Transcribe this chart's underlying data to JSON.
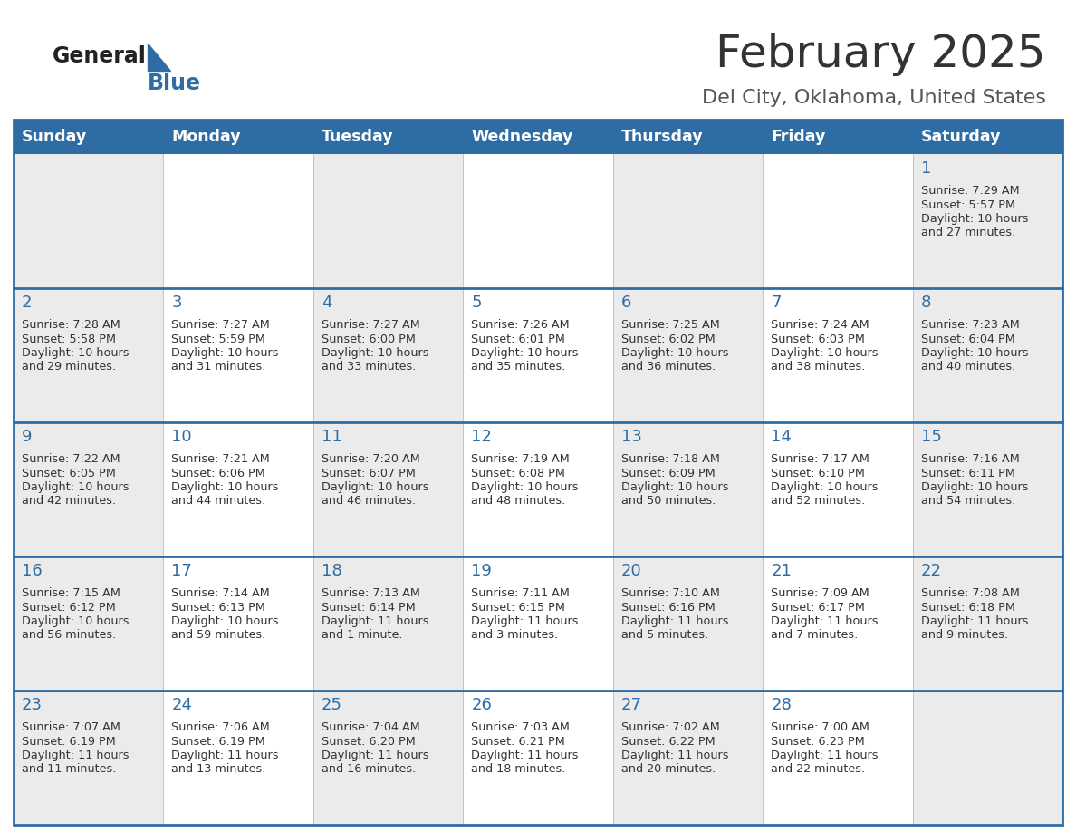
{
  "title": "February 2025",
  "subtitle": "Del City, Oklahoma, United States",
  "header_bg": "#2E6DA4",
  "header_text_color": "#FFFFFF",
  "cell_bg_light": "#EBEBEB",
  "cell_bg_white": "#FFFFFF",
  "border_color": "#2E6DA4",
  "day_names": [
    "Sunday",
    "Monday",
    "Tuesday",
    "Wednesday",
    "Thursday",
    "Friday",
    "Saturday"
  ],
  "title_color": "#333333",
  "subtitle_color": "#555555",
  "day_num_color": "#2E6DA4",
  "cell_text_color": "#333333",
  "logo_general_color": "#222222",
  "logo_blue_color": "#2E6DA4",
  "weeks": [
    [
      {
        "day": null,
        "sunrise": null,
        "sunset": null,
        "daylight": null
      },
      {
        "day": null,
        "sunrise": null,
        "sunset": null,
        "daylight": null
      },
      {
        "day": null,
        "sunrise": null,
        "sunset": null,
        "daylight": null
      },
      {
        "day": null,
        "sunrise": null,
        "sunset": null,
        "daylight": null
      },
      {
        "day": null,
        "sunrise": null,
        "sunset": null,
        "daylight": null
      },
      {
        "day": null,
        "sunrise": null,
        "sunset": null,
        "daylight": null
      },
      {
        "day": 1,
        "sunrise": "7:29 AM",
        "sunset": "5:57 PM",
        "daylight": "10 hours",
        "daylight2": "and 27 minutes."
      }
    ],
    [
      {
        "day": 2,
        "sunrise": "7:28 AM",
        "sunset": "5:58 PM",
        "daylight": "10 hours",
        "daylight2": "and 29 minutes."
      },
      {
        "day": 3,
        "sunrise": "7:27 AM",
        "sunset": "5:59 PM",
        "daylight": "10 hours",
        "daylight2": "and 31 minutes."
      },
      {
        "day": 4,
        "sunrise": "7:27 AM",
        "sunset": "6:00 PM",
        "daylight": "10 hours",
        "daylight2": "and 33 minutes."
      },
      {
        "day": 5,
        "sunrise": "7:26 AM",
        "sunset": "6:01 PM",
        "daylight": "10 hours",
        "daylight2": "and 35 minutes."
      },
      {
        "day": 6,
        "sunrise": "7:25 AM",
        "sunset": "6:02 PM",
        "daylight": "10 hours",
        "daylight2": "and 36 minutes."
      },
      {
        "day": 7,
        "sunrise": "7:24 AM",
        "sunset": "6:03 PM",
        "daylight": "10 hours",
        "daylight2": "and 38 minutes."
      },
      {
        "day": 8,
        "sunrise": "7:23 AM",
        "sunset": "6:04 PM",
        "daylight": "10 hours",
        "daylight2": "and 40 minutes."
      }
    ],
    [
      {
        "day": 9,
        "sunrise": "7:22 AM",
        "sunset": "6:05 PM",
        "daylight": "10 hours",
        "daylight2": "and 42 minutes."
      },
      {
        "day": 10,
        "sunrise": "7:21 AM",
        "sunset": "6:06 PM",
        "daylight": "10 hours",
        "daylight2": "and 44 minutes."
      },
      {
        "day": 11,
        "sunrise": "7:20 AM",
        "sunset": "6:07 PM",
        "daylight": "10 hours",
        "daylight2": "and 46 minutes."
      },
      {
        "day": 12,
        "sunrise": "7:19 AM",
        "sunset": "6:08 PM",
        "daylight": "10 hours",
        "daylight2": "and 48 minutes."
      },
      {
        "day": 13,
        "sunrise": "7:18 AM",
        "sunset": "6:09 PM",
        "daylight": "10 hours",
        "daylight2": "and 50 minutes."
      },
      {
        "day": 14,
        "sunrise": "7:17 AM",
        "sunset": "6:10 PM",
        "daylight": "10 hours",
        "daylight2": "and 52 minutes."
      },
      {
        "day": 15,
        "sunrise": "7:16 AM",
        "sunset": "6:11 PM",
        "daylight": "10 hours",
        "daylight2": "and 54 minutes."
      }
    ],
    [
      {
        "day": 16,
        "sunrise": "7:15 AM",
        "sunset": "6:12 PM",
        "daylight": "10 hours",
        "daylight2": "and 56 minutes."
      },
      {
        "day": 17,
        "sunrise": "7:14 AM",
        "sunset": "6:13 PM",
        "daylight": "10 hours",
        "daylight2": "and 59 minutes."
      },
      {
        "day": 18,
        "sunrise": "7:13 AM",
        "sunset": "6:14 PM",
        "daylight": "11 hours",
        "daylight2": "and 1 minute."
      },
      {
        "day": 19,
        "sunrise": "7:11 AM",
        "sunset": "6:15 PM",
        "daylight": "11 hours",
        "daylight2": "and 3 minutes."
      },
      {
        "day": 20,
        "sunrise": "7:10 AM",
        "sunset": "6:16 PM",
        "daylight": "11 hours",
        "daylight2": "and 5 minutes."
      },
      {
        "day": 21,
        "sunrise": "7:09 AM",
        "sunset": "6:17 PM",
        "daylight": "11 hours",
        "daylight2": "and 7 minutes."
      },
      {
        "day": 22,
        "sunrise": "7:08 AM",
        "sunset": "6:18 PM",
        "daylight": "11 hours",
        "daylight2": "and 9 minutes."
      }
    ],
    [
      {
        "day": 23,
        "sunrise": "7:07 AM",
        "sunset": "6:19 PM",
        "daylight": "11 hours",
        "daylight2": "and 11 minutes."
      },
      {
        "day": 24,
        "sunrise": "7:06 AM",
        "sunset": "6:19 PM",
        "daylight": "11 hours",
        "daylight2": "and 13 minutes."
      },
      {
        "day": 25,
        "sunrise": "7:04 AM",
        "sunset": "6:20 PM",
        "daylight": "11 hours",
        "daylight2": "and 16 minutes."
      },
      {
        "day": 26,
        "sunrise": "7:03 AM",
        "sunset": "6:21 PM",
        "daylight": "11 hours",
        "daylight2": "and 18 minutes."
      },
      {
        "day": 27,
        "sunrise": "7:02 AM",
        "sunset": "6:22 PM",
        "daylight": "11 hours",
        "daylight2": "and 20 minutes."
      },
      {
        "day": 28,
        "sunrise": "7:00 AM",
        "sunset": "6:23 PM",
        "daylight": "11 hours",
        "daylight2": "and 22 minutes."
      },
      {
        "day": null,
        "sunrise": null,
        "sunset": null,
        "daylight": null,
        "daylight2": null
      }
    ]
  ]
}
